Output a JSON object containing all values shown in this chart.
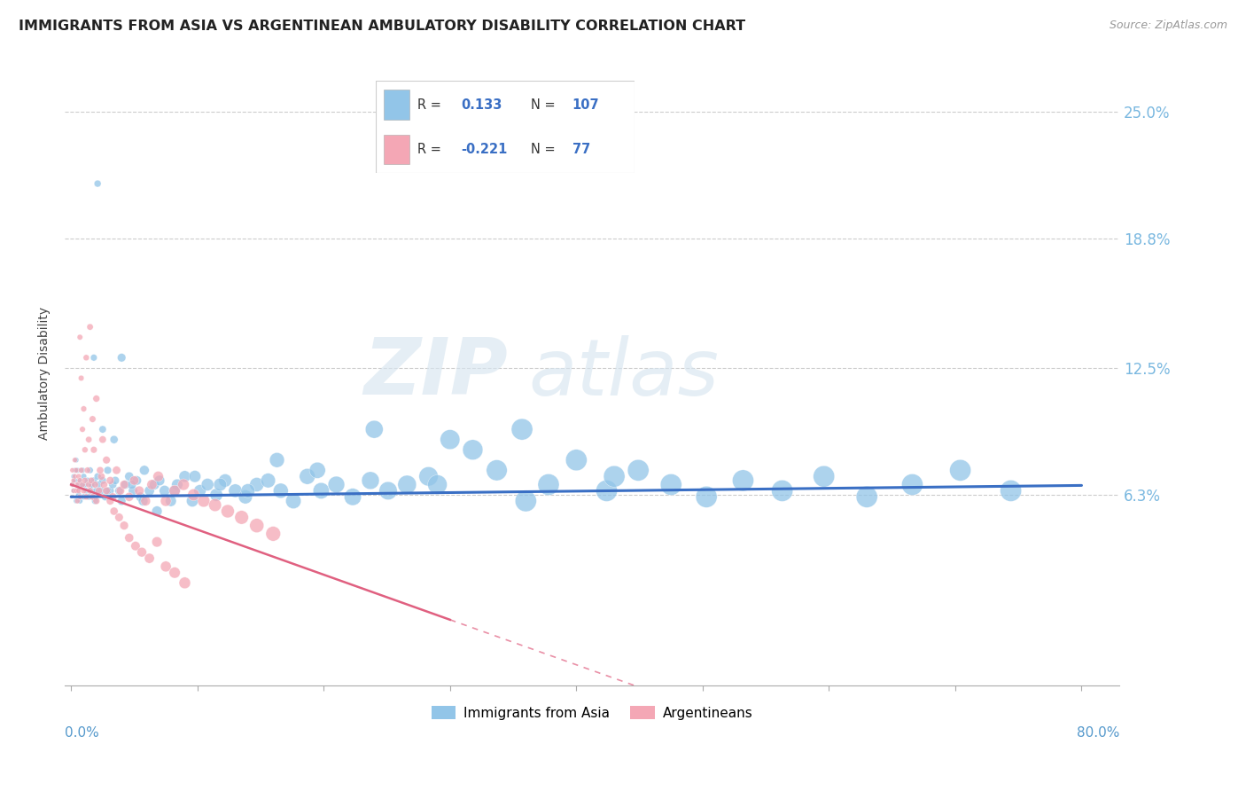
{
  "title": "IMMIGRANTS FROM ASIA VS ARGENTINEAN AMBULATORY DISABILITY CORRELATION CHART",
  "source": "Source: ZipAtlas.com",
  "ylabel": "Ambulatory Disability",
  "ytick_labels": [
    "6.3%",
    "12.5%",
    "18.8%",
    "25.0%"
  ],
  "ytick_values": [
    0.063,
    0.125,
    0.188,
    0.25
  ],
  "xtick_values": [
    0.0,
    0.1,
    0.2,
    0.3,
    0.4,
    0.5,
    0.6,
    0.7,
    0.8
  ],
  "xlim": [
    -0.005,
    0.83
  ],
  "ylim": [
    -0.03,
    0.275
  ],
  "r_asia": "0.133",
  "n_asia": "107",
  "r_arg": "-0.221",
  "n_arg": "77",
  "blue_color": "#92c5e8",
  "pink_color": "#f4a7b5",
  "trend_blue": "#3a6fc4",
  "trend_pink": "#e06080",
  "watermark_zip": "ZIP",
  "watermark_atlas": "atlas",
  "legend_label_asia": "Immigrants from Asia",
  "legend_label_arg": "Argentineans",
  "asia_x": [
    0.001,
    0.002,
    0.002,
    0.003,
    0.003,
    0.004,
    0.004,
    0.005,
    0.005,
    0.006,
    0.006,
    0.007,
    0.007,
    0.008,
    0.009,
    0.01,
    0.01,
    0.011,
    0.012,
    0.013,
    0.014,
    0.015,
    0.016,
    0.017,
    0.018,
    0.019,
    0.02,
    0.021,
    0.022,
    0.024,
    0.025,
    0.027,
    0.029,
    0.031,
    0.033,
    0.035,
    0.038,
    0.04,
    0.043,
    0.046,
    0.049,
    0.052,
    0.055,
    0.058,
    0.062,
    0.066,
    0.07,
    0.074,
    0.079,
    0.084,
    0.09,
    0.096,
    0.102,
    0.108,
    0.115,
    0.122,
    0.13,
    0.138,
    0.147,
    0.156,
    0.166,
    0.176,
    0.187,
    0.198,
    0.21,
    0.223,
    0.237,
    0.251,
    0.266,
    0.283,
    0.3,
    0.318,
    0.337,
    0.357,
    0.378,
    0.4,
    0.424,
    0.449,
    0.475,
    0.503,
    0.532,
    0.563,
    0.596,
    0.63,
    0.666,
    0.704,
    0.744,
    0.43,
    0.36,
    0.29,
    0.24,
    0.195,
    0.163,
    0.14,
    0.118,
    0.098,
    0.082,
    0.068,
    0.057,
    0.048,
    0.04,
    0.034,
    0.029,
    0.025,
    0.021,
    0.018,
    0.016
  ],
  "asia_y": [
    0.068,
    0.072,
    0.065,
    0.075,
    0.07,
    0.06,
    0.08,
    0.065,
    0.075,
    0.068,
    0.063,
    0.07,
    0.06,
    0.068,
    0.075,
    0.062,
    0.072,
    0.068,
    0.065,
    0.07,
    0.062,
    0.075,
    0.065,
    0.068,
    0.07,
    0.06,
    0.065,
    0.072,
    0.068,
    0.065,
    0.07,
    0.062,
    0.075,
    0.065,
    0.068,
    0.07,
    0.065,
    0.06,
    0.068,
    0.072,
    0.065,
    0.07,
    0.062,
    0.075,
    0.065,
    0.068,
    0.07,
    0.065,
    0.06,
    0.068,
    0.072,
    0.06,
    0.065,
    0.068,
    0.063,
    0.07,
    0.065,
    0.062,
    0.068,
    0.07,
    0.065,
    0.06,
    0.072,
    0.065,
    0.068,
    0.062,
    0.07,
    0.065,
    0.068,
    0.072,
    0.09,
    0.085,
    0.075,
    0.095,
    0.068,
    0.08,
    0.065,
    0.075,
    0.068,
    0.062,
    0.07,
    0.065,
    0.072,
    0.062,
    0.068,
    0.075,
    0.065,
    0.072,
    0.06,
    0.068,
    0.095,
    0.075,
    0.08,
    0.065,
    0.068,
    0.072,
    0.065,
    0.055,
    0.06,
    0.068,
    0.13,
    0.09,
    0.065,
    0.095,
    0.215,
    0.13,
    0.068
  ],
  "arg_x": [
    0.001,
    0.001,
    0.002,
    0.002,
    0.003,
    0.003,
    0.004,
    0.004,
    0.005,
    0.005,
    0.006,
    0.006,
    0.007,
    0.007,
    0.008,
    0.009,
    0.01,
    0.011,
    0.012,
    0.013,
    0.014,
    0.015,
    0.016,
    0.017,
    0.019,
    0.02,
    0.022,
    0.024,
    0.026,
    0.028,
    0.031,
    0.033,
    0.036,
    0.039,
    0.042,
    0.046,
    0.05,
    0.054,
    0.059,
    0.064,
    0.069,
    0.075,
    0.082,
    0.089,
    0.097,
    0.105,
    0.114,
    0.124,
    0.135,
    0.147,
    0.16,
    0.007,
    0.008,
    0.009,
    0.01,
    0.011,
    0.012,
    0.014,
    0.015,
    0.017,
    0.018,
    0.02,
    0.023,
    0.025,
    0.028,
    0.031,
    0.034,
    0.038,
    0.042,
    0.046,
    0.051,
    0.056,
    0.062,
    0.068,
    0.075,
    0.082,
    0.09
  ],
  "arg_y": [
    0.075,
    0.068,
    0.07,
    0.065,
    0.08,
    0.072,
    0.065,
    0.075,
    0.068,
    0.06,
    0.072,
    0.065,
    0.07,
    0.062,
    0.075,
    0.068,
    0.065,
    0.07,
    0.062,
    0.075,
    0.068,
    0.065,
    0.07,
    0.062,
    0.068,
    0.06,
    0.065,
    0.072,
    0.068,
    0.065,
    0.07,
    0.062,
    0.075,
    0.065,
    0.068,
    0.062,
    0.07,
    0.065,
    0.06,
    0.068,
    0.072,
    0.06,
    0.065,
    0.068,
    0.063,
    0.06,
    0.058,
    0.055,
    0.052,
    0.048,
    0.044,
    0.14,
    0.12,
    0.095,
    0.105,
    0.085,
    0.13,
    0.09,
    0.145,
    0.1,
    0.085,
    0.11,
    0.075,
    0.09,
    0.08,
    0.06,
    0.055,
    0.052,
    0.048,
    0.042,
    0.038,
    0.035,
    0.032,
    0.04,
    0.028,
    0.025,
    0.02
  ]
}
